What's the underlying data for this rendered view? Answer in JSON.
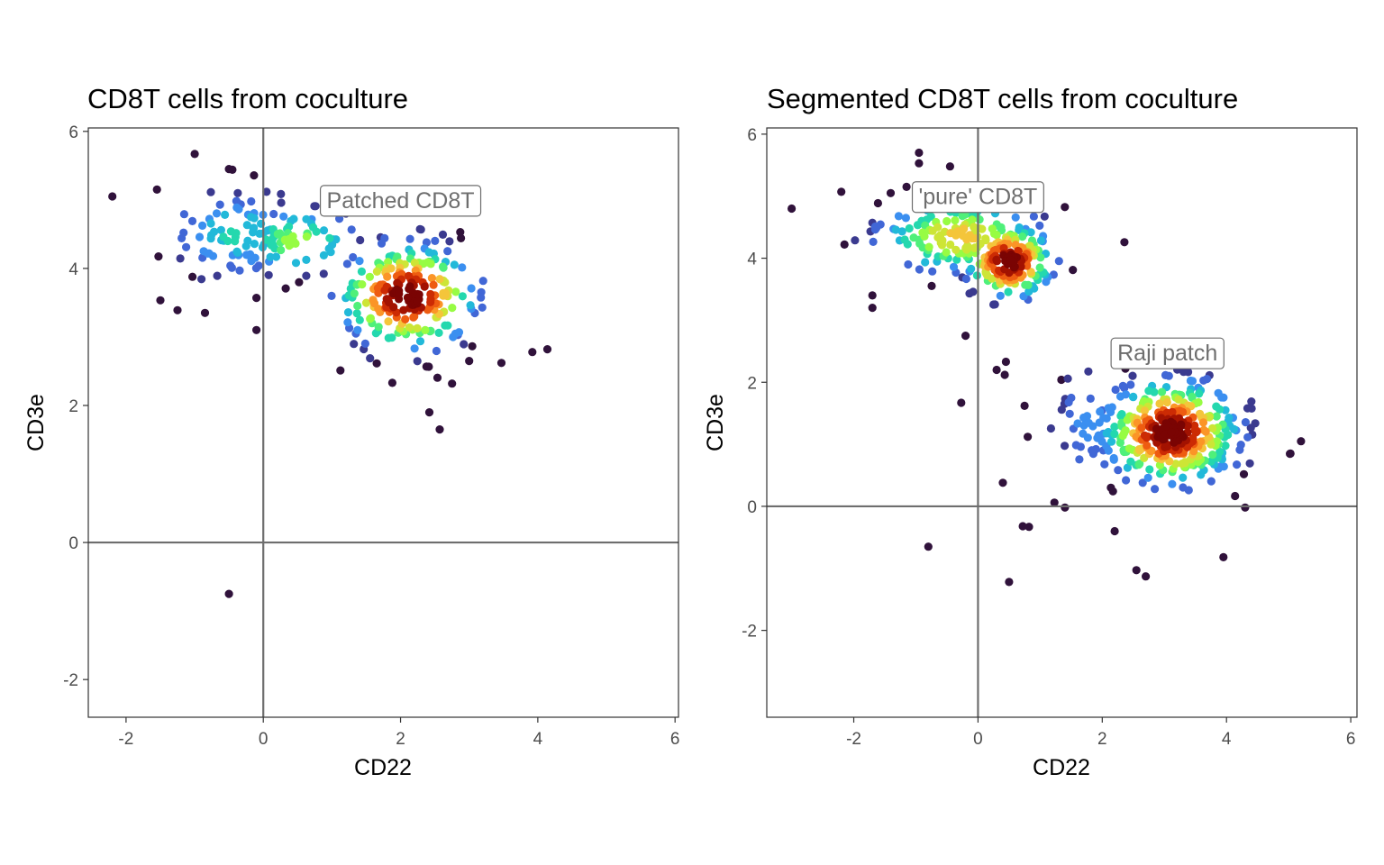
{
  "chart_data": [
    {
      "type": "scatter",
      "title": "CD8T cells from coculture",
      "xlabel": "CD22",
      "ylabel": "CD3e",
      "xlim": [
        -2.55,
        6.05
      ],
      "ylim": [
        -2.55,
        6.05
      ],
      "xticks": [
        -2,
        0,
        2,
        4,
        6
      ],
      "yticks": [
        -2,
        0,
        2,
        4,
        6
      ],
      "xtick_labels": [
        "-2",
        "0",
        "2",
        "4",
        "6"
      ],
      "ytick_labels": [
        "-2",
        "0",
        "2",
        "4",
        "6"
      ],
      "reference_lines": {
        "x": 0,
        "y": 0
      },
      "color_encoding": "point density (dark purple = low, blue/green/yellow = medium, dark red = high)",
      "grid": false,
      "legend": "none",
      "annotations": [
        {
          "text": "Patched CD8T",
          "x": 2.0,
          "y": 5.0
        }
      ],
      "clusters": [
        {
          "cx": -0.4,
          "cy": 4.5,
          "sx": 0.55,
          "sy": 0.35,
          "n": 80,
          "peak": 0.25
        },
        {
          "cx": 0.5,
          "cy": 4.4,
          "sx": 0.45,
          "sy": 0.25,
          "n": 60,
          "peak": 0.4
        },
        {
          "cx": 2.1,
          "cy": 3.6,
          "sx": 0.5,
          "sy": 0.38,
          "n": 230,
          "peak": 1.0
        }
      ],
      "outliers": [
        [
          -2.2,
          5.05
        ],
        [
          -1.0,
          5.67
        ],
        [
          -0.5,
          5.45
        ],
        [
          -0.45,
          5.44
        ],
        [
          -1.55,
          5.15
        ],
        [
          -1.25,
          3.39
        ],
        [
          -0.85,
          3.35
        ],
        [
          -0.1,
          3.1
        ],
        [
          -0.5,
          -0.75
        ],
        [
          1.88,
          2.33
        ],
        [
          2.42,
          1.9
        ],
        [
          2.57,
          1.65
        ],
        [
          2.75,
          2.32
        ],
        [
          2.87,
          4.53
        ],
        [
          2.88,
          4.44
        ],
        [
          3.47,
          2.62
        ],
        [
          3.92,
          2.78
        ],
        [
          4.14,
          2.82
        ],
        [
          3.0,
          2.65
        ],
        [
          1.35,
          3.05
        ]
      ]
    },
    {
      "type": "scatter",
      "title": "Segmented CD8T cells from coculture",
      "xlabel": "CD22",
      "ylabel": "CD3e",
      "xlim": [
        -3.4,
        6.1
      ],
      "ylim": [
        -3.4,
        6.1
      ],
      "xticks": [
        -2,
        0,
        2,
        4,
        6
      ],
      "yticks": [
        -2,
        0,
        2,
        4,
        6
      ],
      "xtick_labels": [
        "-2",
        "0",
        "2",
        "4",
        "6"
      ],
      "ytick_labels": [
        "-2",
        "0",
        "2",
        "4",
        "6"
      ],
      "reference_lines": {
        "x": 0,
        "y": 0
      },
      "color_encoding": "point density (dark purple = low, blue/green/yellow = medium, dark red = high)",
      "grid": false,
      "legend": "none",
      "annotations": [
        {
          "text": "'pure' CD8T",
          "x": 0.0,
          "y": 5.0
        },
        {
          "text": "Raji patch",
          "x": 3.05,
          "y": 2.48
        }
      ],
      "clusters": [
        {
          "cx": -0.3,
          "cy": 4.35,
          "sx": 0.7,
          "sy": 0.32,
          "n": 150,
          "peak": 0.55
        },
        {
          "cx": 0.5,
          "cy": 3.95,
          "sx": 0.35,
          "sy": 0.3,
          "n": 140,
          "peak": 1.0
        },
        {
          "cx": 3.1,
          "cy": 1.2,
          "sx": 0.55,
          "sy": 0.42,
          "n": 360,
          "peak": 1.0
        },
        {
          "cx": 1.8,
          "cy": 1.3,
          "sx": 0.35,
          "sy": 0.5,
          "n": 30,
          "peak": 0.15
        }
      ],
      "outliers": [
        [
          -3.0,
          4.8
        ],
        [
          -2.2,
          5.07
        ],
        [
          -2.15,
          4.22
        ],
        [
          -1.15,
          5.15
        ],
        [
          -0.95,
          5.53
        ],
        [
          -0.95,
          5.7
        ],
        [
          -0.45,
          5.48
        ],
        [
          -1.7,
          3.4
        ],
        [
          -1.7,
          3.2
        ],
        [
          -0.2,
          2.75
        ],
        [
          -0.27,
          1.67
        ],
        [
          0.3,
          2.2
        ],
        [
          0.45,
          2.33
        ],
        [
          0.43,
          2.12
        ],
        [
          0.75,
          1.62
        ],
        [
          0.8,
          1.12
        ],
        [
          1.23,
          0.06
        ],
        [
          0.4,
          0.38
        ],
        [
          0.72,
          -0.32
        ],
        [
          0.82,
          -0.33
        ],
        [
          -0.8,
          -0.65
        ],
        [
          0.5,
          -1.22
        ],
        [
          2.55,
          -1.03
        ],
        [
          2.7,
          -1.13
        ],
        [
          3.95,
          -0.82
        ],
        [
          4.3,
          -0.02
        ],
        [
          5.03,
          0.85
        ],
        [
          5.2,
          1.05
        ],
        [
          1.4,
          -0.02
        ],
        [
          2.2,
          -0.4
        ]
      ]
    }
  ]
}
